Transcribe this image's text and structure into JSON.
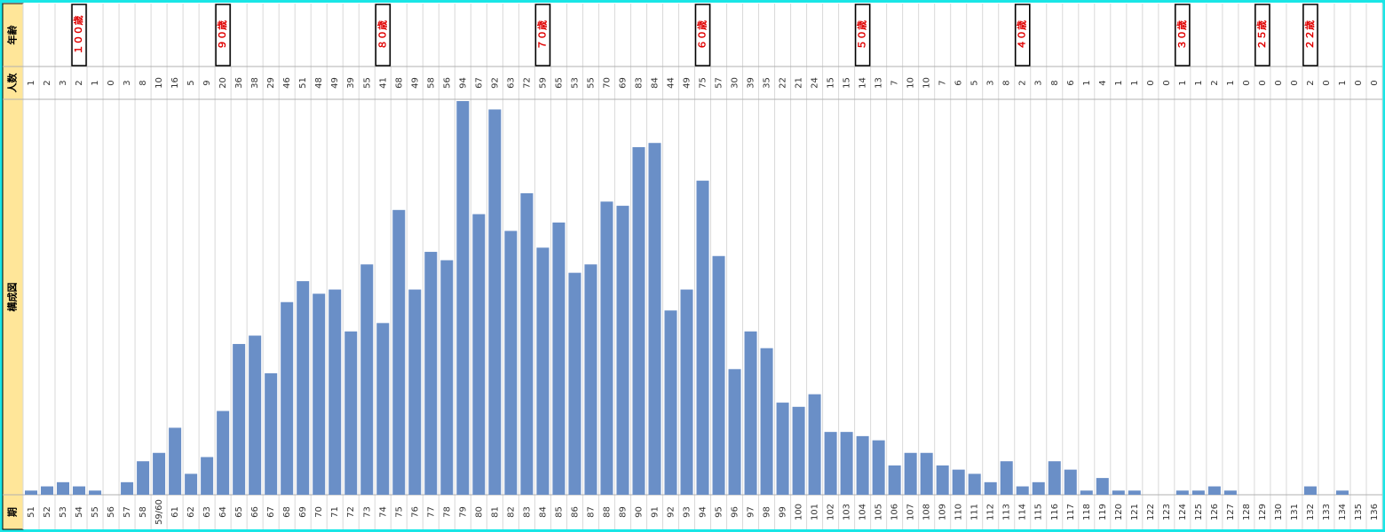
{
  "row_labels": {
    "age": "年齢",
    "count": "人数",
    "chart": "構成図",
    "period": "期"
  },
  "colors": {
    "border": "#19e6e6",
    "label_bg": "#ffe699",
    "bar": "#6a8fc7",
    "grid": "#d9d9d9",
    "age_text": "#e00000"
  },
  "chart_data": {
    "type": "bar",
    "categories": [
      "51",
      "52",
      "53",
      "54",
      "55",
      "56",
      "57",
      "58",
      "59/60",
      "61",
      "62",
      "63",
      "64",
      "65",
      "66",
      "67",
      "68",
      "69",
      "70",
      "71",
      "72",
      "73",
      "74",
      "75",
      "76",
      "77",
      "78",
      "79",
      "80",
      "81",
      "82",
      "83",
      "84",
      "85",
      "86",
      "87",
      "88",
      "89",
      "90",
      "91",
      "92",
      "93",
      "94",
      "95",
      "96",
      "97",
      "98",
      "99",
      "100",
      "101",
      "102",
      "103",
      "104",
      "105",
      "106",
      "107",
      "108",
      "109",
      "110",
      "111",
      "112",
      "113",
      "114",
      "115",
      "116",
      "117",
      "118",
      "119",
      "120",
      "121",
      "122",
      "123",
      "124",
      "125",
      "126",
      "127",
      "128",
      "129",
      "130",
      "131",
      "132",
      "133",
      "134",
      "135",
      "136"
    ],
    "values": [
      1,
      2,
      3,
      2,
      1,
      0,
      3,
      8,
      10,
      16,
      5,
      9,
      20,
      36,
      38,
      29,
      46,
      51,
      48,
      49,
      39,
      55,
      41,
      68,
      49,
      58,
      56,
      94,
      67,
      92,
      63,
      72,
      59,
      65,
      53,
      55,
      70,
      69,
      83,
      84,
      44,
      49,
      75,
      57,
      30,
      39,
      35,
      22,
      21,
      24,
      15,
      15,
      14,
      13,
      7,
      10,
      10,
      7,
      6,
      5,
      3,
      8,
      2,
      3,
      8,
      6,
      1,
      4,
      1,
      1,
      0,
      0,
      1,
      1,
      2,
      1,
      0,
      0,
      0,
      0,
      2,
      0,
      1,
      0,
      0
    ],
    "ylim": [
      0,
      94
    ],
    "grid": true,
    "age_markers": [
      {
        "period": "54",
        "label": "１００歳"
      },
      {
        "period": "64",
        "label": "９０歳"
      },
      {
        "period": "74",
        "label": "８０歳"
      },
      {
        "period": "84",
        "label": "７０歳"
      },
      {
        "period": "94",
        "label": "６０歳"
      },
      {
        "period": "104",
        "label": "５０歳"
      },
      {
        "period": "114",
        "label": "４０歳"
      },
      {
        "period": "124",
        "label": "３０歳"
      },
      {
        "period": "129",
        "label": "２５歳"
      },
      {
        "period": "132",
        "label": "２２歳"
      }
    ]
  }
}
